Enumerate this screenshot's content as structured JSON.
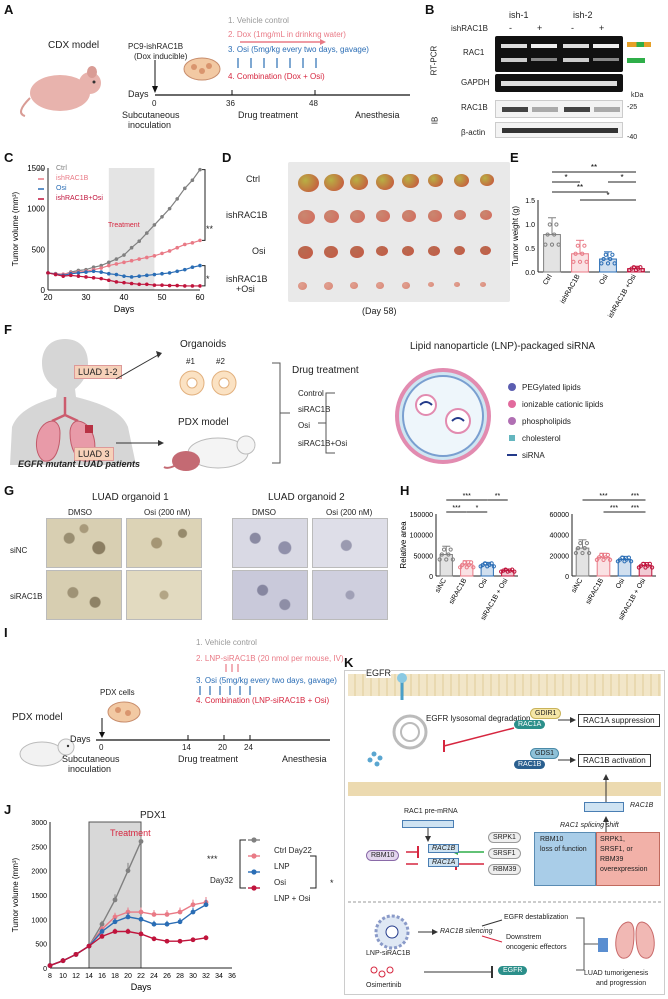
{
  "panels": {
    "A": "A",
    "B": "B",
    "C": "C",
    "D": "D",
    "E": "E",
    "F": "F",
    "G": "G",
    "H": "H",
    "I": "I",
    "J": "J",
    "K": "K"
  },
  "A": {
    "model": "CDX model",
    "line": "PC9-ishRAC1B",
    "line2": "(Dox inducible)",
    "treatments": [
      "1. Vehicle control",
      "2. Dox (1mg/mL in drinkng water)",
      "3. Osi (5mg/kg every two days, gavage)",
      "4. Combination (Dox + Osi)"
    ],
    "days_label": "Days",
    "day0": "0",
    "day36": "36",
    "day48": "48",
    "sub": "Subcutaneous",
    "sub2": "inoculation",
    "drug": "Drug treatment",
    "anest": "Anesthesia"
  },
  "B": {
    "ish1": "ish-1",
    "ish2": "ish-2",
    "ish_label": "ishRAC1B",
    "signs": [
      "-",
      "+",
      "-",
      "+"
    ],
    "rtpcr": "RT-PCR",
    "ib": "IB",
    "bands": [
      "RAC1",
      "GAPDH",
      "RAC1B",
      "β-actin"
    ],
    "kda": "kDa",
    "m25": "-25",
    "m40": "-40"
  },
  "C": {
    "legend": [
      "Ctrl",
      "ishRAC1B",
      "Osi",
      "ishRAC1B+Osi"
    ],
    "treatment": "Treatment",
    "sig1": "**",
    "sig2": "*"
  },
  "D": {
    "rows": [
      "Ctrl",
      "ishRAC1B",
      "Osi",
      "ishRAC1B",
      "+Osi"
    ],
    "day": "(Day 58)"
  },
  "E": {
    "sigs": [
      "**",
      "*",
      "**",
      "*",
      "*"
    ]
  },
  "F": {
    "organoids": "Organoids",
    "o1": "#1",
    "o2": "#2",
    "luad12": "LUAD 1-2",
    "luad3": "LUAD 3",
    "pdx": "PDX model",
    "patients": "EGFR mutant LUAD patients",
    "patients_em": "EGFR",
    "drug": "Drug treatment",
    "arms": [
      "Control",
      "siRAC1B",
      "Osi",
      "siRAC1B+Osi"
    ],
    "lnp_title": "Lipid nanoparticle (LNP)-packaged siRNA",
    "lnp_legend": [
      "PEGylated lipids",
      "ionizable cationic lipids",
      "phospholipids",
      "cholesterol",
      "siRNA"
    ]
  },
  "G": {
    "org1": "LUAD organoid 1",
    "org2": "LUAD organoid 2",
    "dmso": "DMSO",
    "osi": "Osi (200 nM)",
    "row1": "siNC",
    "row2": "siRAC1B"
  },
  "H": {
    "sigs_left": [
      "***",
      "*",
      "***",
      "**"
    ],
    "sigs_right": [
      "***",
      "***",
      "***",
      "***"
    ]
  },
  "I": {
    "model": "PDX model",
    "cells": "PDX cells",
    "treatments": [
      "1. Vehicle control",
      "2. LNP-siRAC1B (20 nmol  per mouse, IV)",
      "3. Osi (5mg/kg every two days, gavage)",
      "4. Combination (LNP-siRAC1B + Osi)"
    ],
    "days_label": "Days",
    "ticks": [
      "0",
      "14",
      "20",
      "24"
    ],
    "sub": "Subcutaneous",
    "sub2": "inoculation",
    "drug": "Drug treatment",
    "anest": "Anesthesia"
  },
  "J": {
    "title": "PDX1",
    "treatment": "Treatment",
    "legend": [
      "Ctrl Day22",
      "LNP",
      "Osi",
      "LNP + Osi"
    ],
    "day32": "Day32",
    "sig1": "***",
    "sig2": "*"
  },
  "K": {
    "egfr": "EGFR",
    "lyso": "EGFR lysosomal degradation",
    "gdi": "GDIR1",
    "rac1a": "RAC1A",
    "gds": "GDS1",
    "rac1b": "RAC1B",
    "sup": "RAC1A suppression",
    "act": "RAC1B activation",
    "pre": "RAC1 pre-mRNA",
    "pre_em": "RAC1",
    "exon_b": "RAC1B",
    "exon_a": "RAC1A",
    "rbm10": "RBM10",
    "srpk": "SRPK1",
    "srsf": "SRSF1",
    "rbm39": "RBM39",
    "shift": "RAC1 splicing shift",
    "shift_em": "RAC1",
    "loss1": "RBM10",
    "loss2": "loss of function",
    "over1": "SRPK1,",
    "over2": "SRSF1, or",
    "over3": "RBM39",
    "over4": "overexpression",
    "rac1b_up": "RAC1B",
    "lnp": "LNP-siRAC1B",
    "silencing": "RAC1B silencing",
    "destab": "EGFR destablization",
    "down1": "Downstrem",
    "down2": "oncogenic effectors",
    "osi": "Osimertinib",
    "egfr2": "EGFR",
    "out1": "LUAD tumorigenesis",
    "out2": "and progression"
  },
  "chart_data": [
    {
      "type": "line",
      "id": "C",
      "title": "",
      "xlabel": "Days",
      "ylabel": "Tumor volume (mm³)",
      "xlim": [
        20,
        60
      ],
      "ylim": [
        0,
        1500
      ],
      "xticks": [
        20,
        30,
        40,
        50,
        60
      ],
      "yticks": [
        0,
        500,
        1000,
        1500
      ],
      "x": [
        20,
        22,
        24,
        26,
        28,
        30,
        32,
        34,
        36,
        38,
        40,
        42,
        44,
        46,
        48,
        50,
        52,
        54,
        56,
        58,
        60
      ],
      "series": [
        {
          "name": "Ctrl",
          "color": "#808080",
          "values": [
            210,
            200,
            190,
            220,
            240,
            250,
            280,
            300,
            340,
            380,
            430,
            520,
            600,
            700,
            800,
            900,
            1000,
            1120,
            1250,
            1350,
            1480
          ]
        },
        {
          "name": "ishRAC1B",
          "color": "#e97a86",
          "values": [
            210,
            200,
            195,
            210,
            220,
            230,
            250,
            270,
            300,
            320,
            340,
            360,
            380,
            400,
            420,
            450,
            480,
            520,
            560,
            580,
            610
          ]
        },
        {
          "name": "Osi",
          "color": "#2a6db5",
          "values": [
            210,
            195,
            180,
            200,
            210,
            220,
            230,
            220,
            200,
            190,
            170,
            160,
            170,
            180,
            190,
            200,
            210,
            230,
            250,
            280,
            300
          ]
        },
        {
          "name": "ishRAC1B+Osi",
          "color": "#c0143c",
          "values": [
            210,
            190,
            170,
            180,
            170,
            160,
            150,
            140,
            120,
            100,
            90,
            80,
            70,
            70,
            60,
            60,
            55,
            55,
            50,
            50,
            50
          ]
        }
      ],
      "shade": [
        36,
        48
      ]
    },
    {
      "type": "bar",
      "id": "E",
      "ylabel": "Tumor weight (g)",
      "categories": [
        "Ctrl",
        "ishRAC1B",
        "Osi",
        "ishRAC1B +Osi"
      ],
      "values": [
        0.78,
        0.38,
        0.27,
        0.07
      ],
      "errors": [
        0.35,
        0.28,
        0.15,
        0.05
      ],
      "ylim": [
        0,
        1.5
      ],
      "yticks": [
        0,
        0.5,
        1.0,
        1.5
      ],
      "colors": [
        "#808080",
        "#e97a86",
        "#2a6db5",
        "#c0143c"
      ]
    },
    {
      "type": "bar",
      "id": "H-left",
      "ylabel": "Relative area",
      "categories": [
        "siNC",
        "siRAC1B",
        "Osi",
        "siRAC1B + Osi"
      ],
      "values": [
        52000,
        27000,
        27000,
        13000
      ],
      "errors": [
        20000,
        10000,
        6000,
        4000
      ],
      "ylim": [
        0,
        150000
      ],
      "yticks": [
        0,
        50000,
        100000,
        150000
      ],
      "colors": [
        "#808080",
        "#e97a86",
        "#2a6db5",
        "#c0143c"
      ]
    },
    {
      "type": "bar",
      "id": "H-right",
      "ylabel": "",
      "categories": [
        "siNC",
        "siRAC1B",
        "Osi",
        "siRAC1B + Osi"
      ],
      "values": [
        27000,
        18000,
        16000,
        10000
      ],
      "errors": [
        8000,
        4000,
        3000,
        3000
      ],
      "ylim": [
        0,
        60000
      ],
      "yticks": [
        0,
        20000,
        40000,
        60000
      ],
      "colors": [
        "#808080",
        "#e97a86",
        "#2a6db5",
        "#c0143c"
      ]
    },
    {
      "type": "line",
      "id": "J",
      "title": "PDX1",
      "xlabel": "Days",
      "ylabel": "Tumor volume (mm³)",
      "xlim": [
        8,
        36
      ],
      "ylim": [
        0,
        3000
      ],
      "xticks": [
        8,
        10,
        12,
        14,
        16,
        18,
        20,
        22,
        24,
        26,
        28,
        30,
        32,
        34,
        36
      ],
      "yticks": [
        0,
        500,
        1000,
        1500,
        2000,
        2500,
        3000
      ],
      "series": [
        {
          "name": "Ctrl",
          "color": "#808080",
          "x": [
            8,
            10,
            12,
            14,
            16,
            18,
            20,
            22
          ],
          "values": [
            50,
            150,
            280,
            450,
            900,
            1400,
            2000,
            2600
          ]
        },
        {
          "name": "LNP",
          "color": "#e97a86",
          "x": [
            8,
            10,
            12,
            14,
            16,
            18,
            20,
            22,
            24,
            26,
            28,
            30,
            32
          ],
          "values": [
            50,
            150,
            280,
            450,
            800,
            1050,
            1150,
            1150,
            1100,
            1100,
            1150,
            1300,
            1350
          ]
        },
        {
          "name": "Osi",
          "color": "#2a6db5",
          "x": [
            8,
            10,
            12,
            14,
            16,
            18,
            20,
            22,
            24,
            26,
            28,
            30,
            32
          ],
          "values": [
            50,
            150,
            280,
            450,
            750,
            950,
            1050,
            1000,
            900,
            900,
            950,
            1150,
            1300
          ]
        },
        {
          "name": "LNP + Osi",
          "color": "#c0143c",
          "x": [
            8,
            10,
            12,
            14,
            16,
            18,
            20,
            22,
            24,
            26,
            28,
            30,
            32
          ],
          "values": [
            50,
            150,
            280,
            450,
            650,
            750,
            750,
            700,
            600,
            550,
            550,
            580,
            620
          ]
        }
      ],
      "shade": [
        14,
        22
      ]
    }
  ]
}
